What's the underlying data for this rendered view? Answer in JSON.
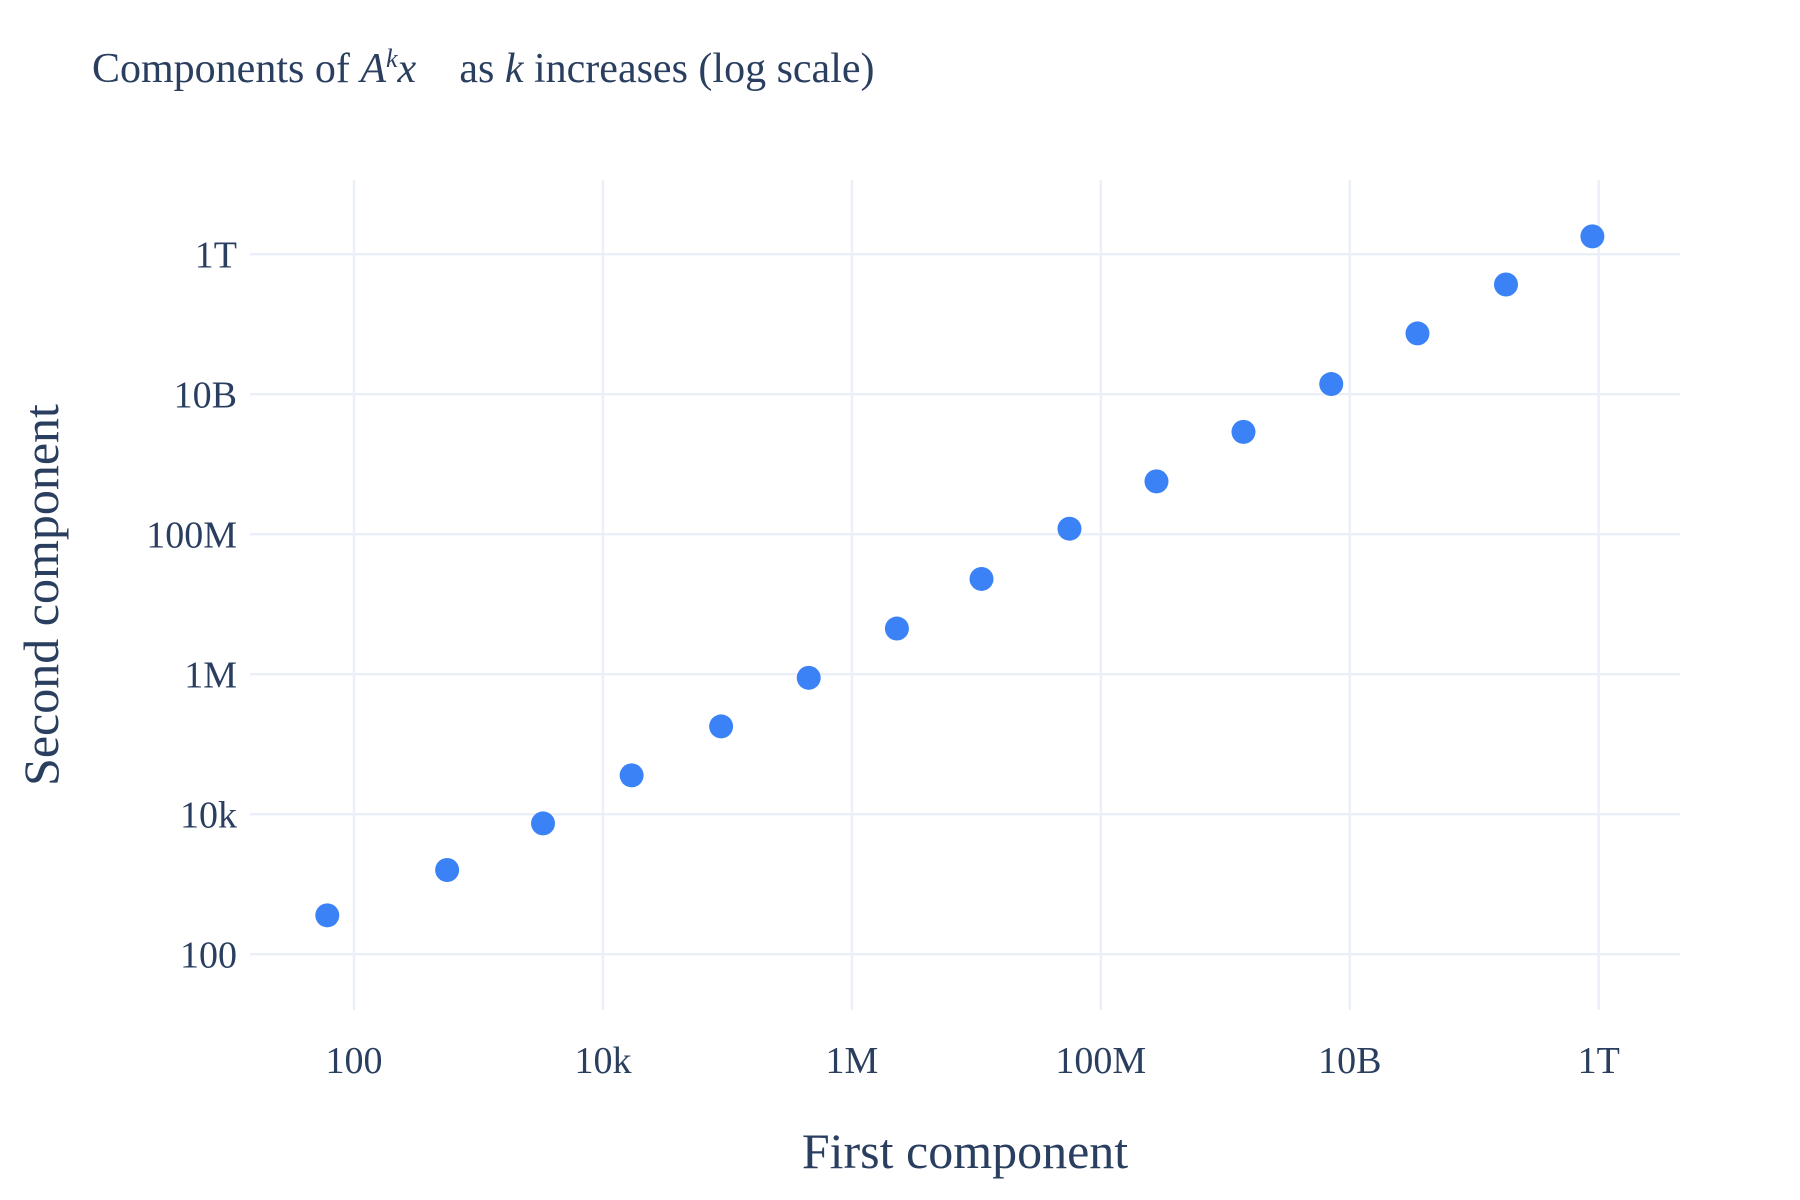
{
  "chart_data": {
    "type": "scatter",
    "title": "Components of A^k x⃗ as k increases (log scale)",
    "title_parts": {
      "a": "Components of ",
      "b": "A",
      "c": "k",
      "d": "x⃗",
      "e": " as ",
      "f": "k",
      "g": " increases (log scale)"
    },
    "xlabel": "First component",
    "ylabel": "Second component",
    "x_scale": "log",
    "y_scale": "log",
    "xlim": [
      14.6,
      4500000000000.0
    ],
    "ylim": [
      16,
      11500000000000.0
    ],
    "grid": true,
    "x_ticks": [
      {
        "v": 100,
        "label": "100"
      },
      {
        "v": 10000.0,
        "label": "10k"
      },
      {
        "v": 1000000.0,
        "label": "1M"
      },
      {
        "v": 100000000.0,
        "label": "100M"
      },
      {
        "v": 10000000000.0,
        "label": "10B"
      },
      {
        "v": 1000000000000.0,
        "label": "1T"
      }
    ],
    "y_ticks": [
      {
        "v": 100,
        "label": "100"
      },
      {
        "v": 10000.0,
        "label": "10k"
      },
      {
        "v": 1000000.0,
        "label": "1M"
      },
      {
        "v": 100000000.0,
        "label": "100M"
      },
      {
        "v": 10000000000.0,
        "label": "10B"
      },
      {
        "v": 1000000000000.0,
        "label": "1T"
      }
    ],
    "marker_color": "#3b82f6",
    "x": [
      61,
      560,
      3300,
      17000,
      89000,
      450000,
      2300000,
      11000000,
      56000000,
      280000000,
      1400000000,
      7100000000,
      35000000000,
      180000000000,
      890000000000
    ],
    "y": [
      360,
      1600,
      7400,
      36000,
      180000,
      890000,
      4500000,
      23000000,
      120000000,
      570000000,
      2900000000,
      14000000000,
      74000000000,
      370000000000,
      1800000000000
    ]
  }
}
